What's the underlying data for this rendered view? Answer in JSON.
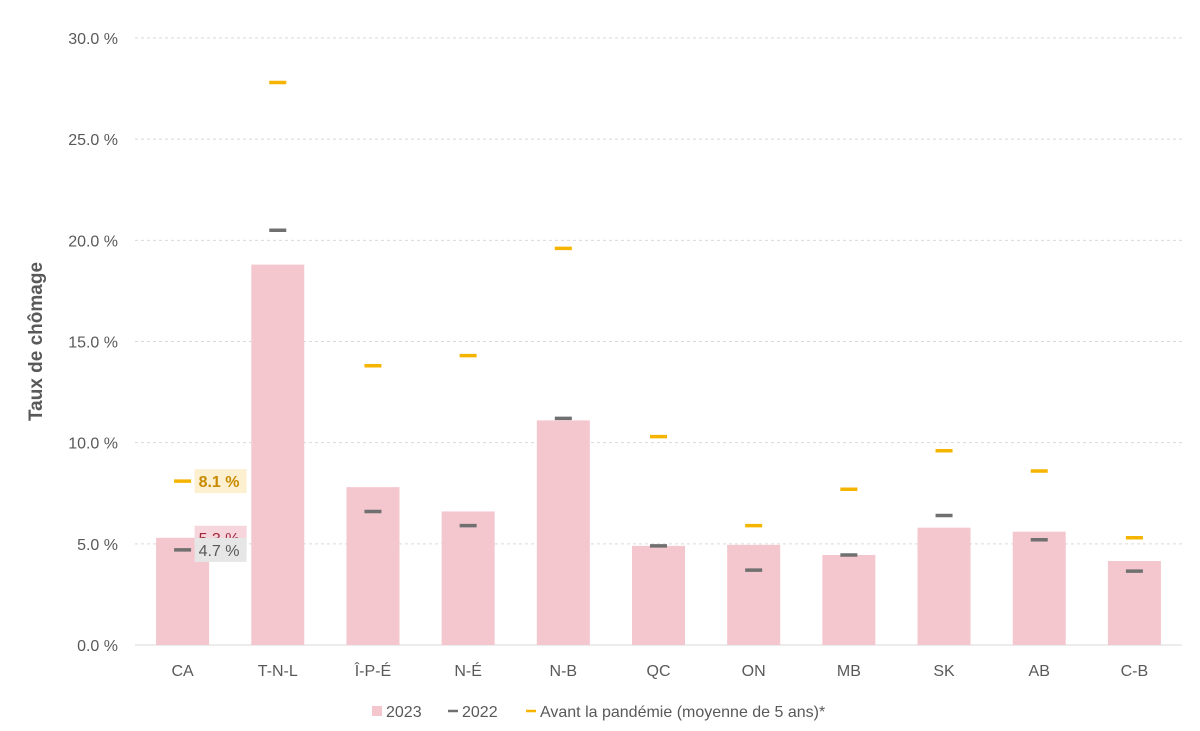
{
  "chart_data": {
    "type": "bar",
    "title": "",
    "xlabel": "",
    "ylabel": "Taux de chômage",
    "ylim": [
      0,
      30
    ],
    "yticks": [
      0,
      5,
      10,
      15,
      20,
      25,
      30
    ],
    "ytick_labels": [
      "0.0 %",
      "5.0 %",
      "10.0 %",
      "15.0 %",
      "20.0 %",
      "25.0 %",
      "30.0 %"
    ],
    "grid": true,
    "legend_position": "bottom",
    "categories": [
      "CA",
      "T-N-L",
      "Î-P-É",
      "N-É",
      "N-B",
      "QC",
      "ON",
      "MB",
      "SK",
      "AB",
      "C-B"
    ],
    "series": [
      {
        "name": "2023",
        "kind": "bar",
        "color": "#f4c6ce",
        "values": [
          5.3,
          18.8,
          7.8,
          6.6,
          11.1,
          4.9,
          4.95,
          4.45,
          5.8,
          5.6,
          4.15
        ]
      },
      {
        "name": "2022",
        "kind": "marker",
        "color": "#707070",
        "values": [
          4.7,
          20.5,
          6.6,
          5.9,
          11.2,
          4.9,
          3.7,
          4.45,
          6.4,
          5.2,
          3.65
        ]
      },
      {
        "name": "Avant la pandémie (moyenne de 5 ans)*",
        "kind": "marker",
        "color": "#f5b400",
        "values": [
          8.1,
          27.8,
          13.8,
          14.3,
          19.6,
          10.3,
          5.9,
          7.7,
          9.6,
          8.6,
          5.3
        ]
      }
    ],
    "annotations": [
      {
        "category": "CA",
        "series": "Avant la pandémie (moyenne de 5 ans)*",
        "text": "8.1 %",
        "text_color": "#c88a00",
        "bg_color": "#fdf0d0"
      },
      {
        "category": "CA",
        "series": "2023",
        "text": "5.3 %",
        "text_color": "#a3243b",
        "bg_color": "#f7d5dc"
      },
      {
        "category": "CA",
        "series": "2022",
        "text": "4.7 %",
        "text_color": "#595959",
        "bg_color": "#e6e6e6"
      }
    ]
  }
}
